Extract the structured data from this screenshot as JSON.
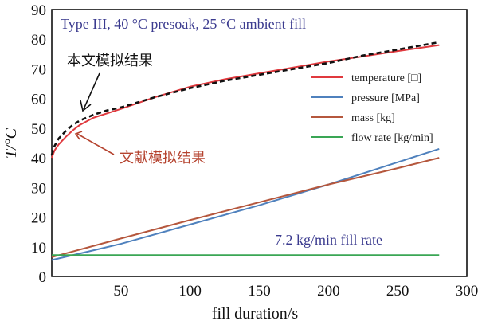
{
  "chart_data": {
    "type": "line",
    "title": "Type III, 40 °C presoak, 25 °C ambient fill",
    "xlabel": "fill duration/s",
    "ylabel": "T/°C",
    "xlim": [
      0,
      300
    ],
    "ylim": [
      0,
      90
    ],
    "xticks": [
      50,
      100,
      150,
      200,
      250,
      300
    ],
    "yticks": [
      0,
      10,
      20,
      30,
      40,
      50,
      60,
      70,
      80,
      90
    ],
    "grid": false,
    "legend_position": "right",
    "series": [
      {
        "name": "temperature [□]",
        "color": "#e0393e",
        "x": [
          0,
          2,
          5,
          10,
          15,
          20,
          30,
          40,
          50,
          75,
          100,
          125,
          150,
          175,
          200,
          225,
          250,
          280
        ],
        "y": [
          40,
          42.5,
          44.5,
          47,
          49.2,
          51,
          53.5,
          55,
          56.5,
          60.5,
          64,
          66.5,
          68.5,
          70.5,
          72.5,
          74.2,
          76,
          78
        ]
      },
      {
        "name": "pressure [MPa]",
        "color": "#4f81bd",
        "x": [
          0,
          50,
          100,
          150,
          200,
          250,
          280
        ],
        "y": [
          5.5,
          11,
          17.5,
          24,
          31,
          38.5,
          43
        ]
      },
      {
        "name": "mass [kg]",
        "color": "#b5573d",
        "x": [
          0,
          50,
          100,
          150,
          200,
          250,
          280
        ],
        "y": [
          6.5,
          12.8,
          19,
          25,
          31,
          36.5,
          40
        ]
      },
      {
        "name": "flow rate [kg/min]",
        "color": "#3aa655",
        "x": [
          0,
          280
        ],
        "y": [
          7.2,
          7.2
        ]
      },
      {
        "name": "本文模拟结果",
        "color": "#111111",
        "dashed": true,
        "x": [
          0,
          2,
          5,
          10,
          15,
          20,
          30,
          40,
          50,
          75,
          100,
          125,
          150,
          175,
          200,
          225,
          250,
          280
        ],
        "y": [
          41,
          44,
          46.5,
          49,
          51,
          52.5,
          54.5,
          56,
          57,
          60.5,
          63.5,
          66,
          68,
          70,
          72,
          74.5,
          76.5,
          79
        ]
      }
    ],
    "legend_entries": [
      "temperature [□]",
      "pressure [MPa]",
      "mass [kg]",
      "flow rate [kg/min]"
    ],
    "annotations": {
      "this_work": "本文模拟结果",
      "literature": "文献模拟结果",
      "fill_rate": "7.2 kg/min fill rate"
    }
  }
}
